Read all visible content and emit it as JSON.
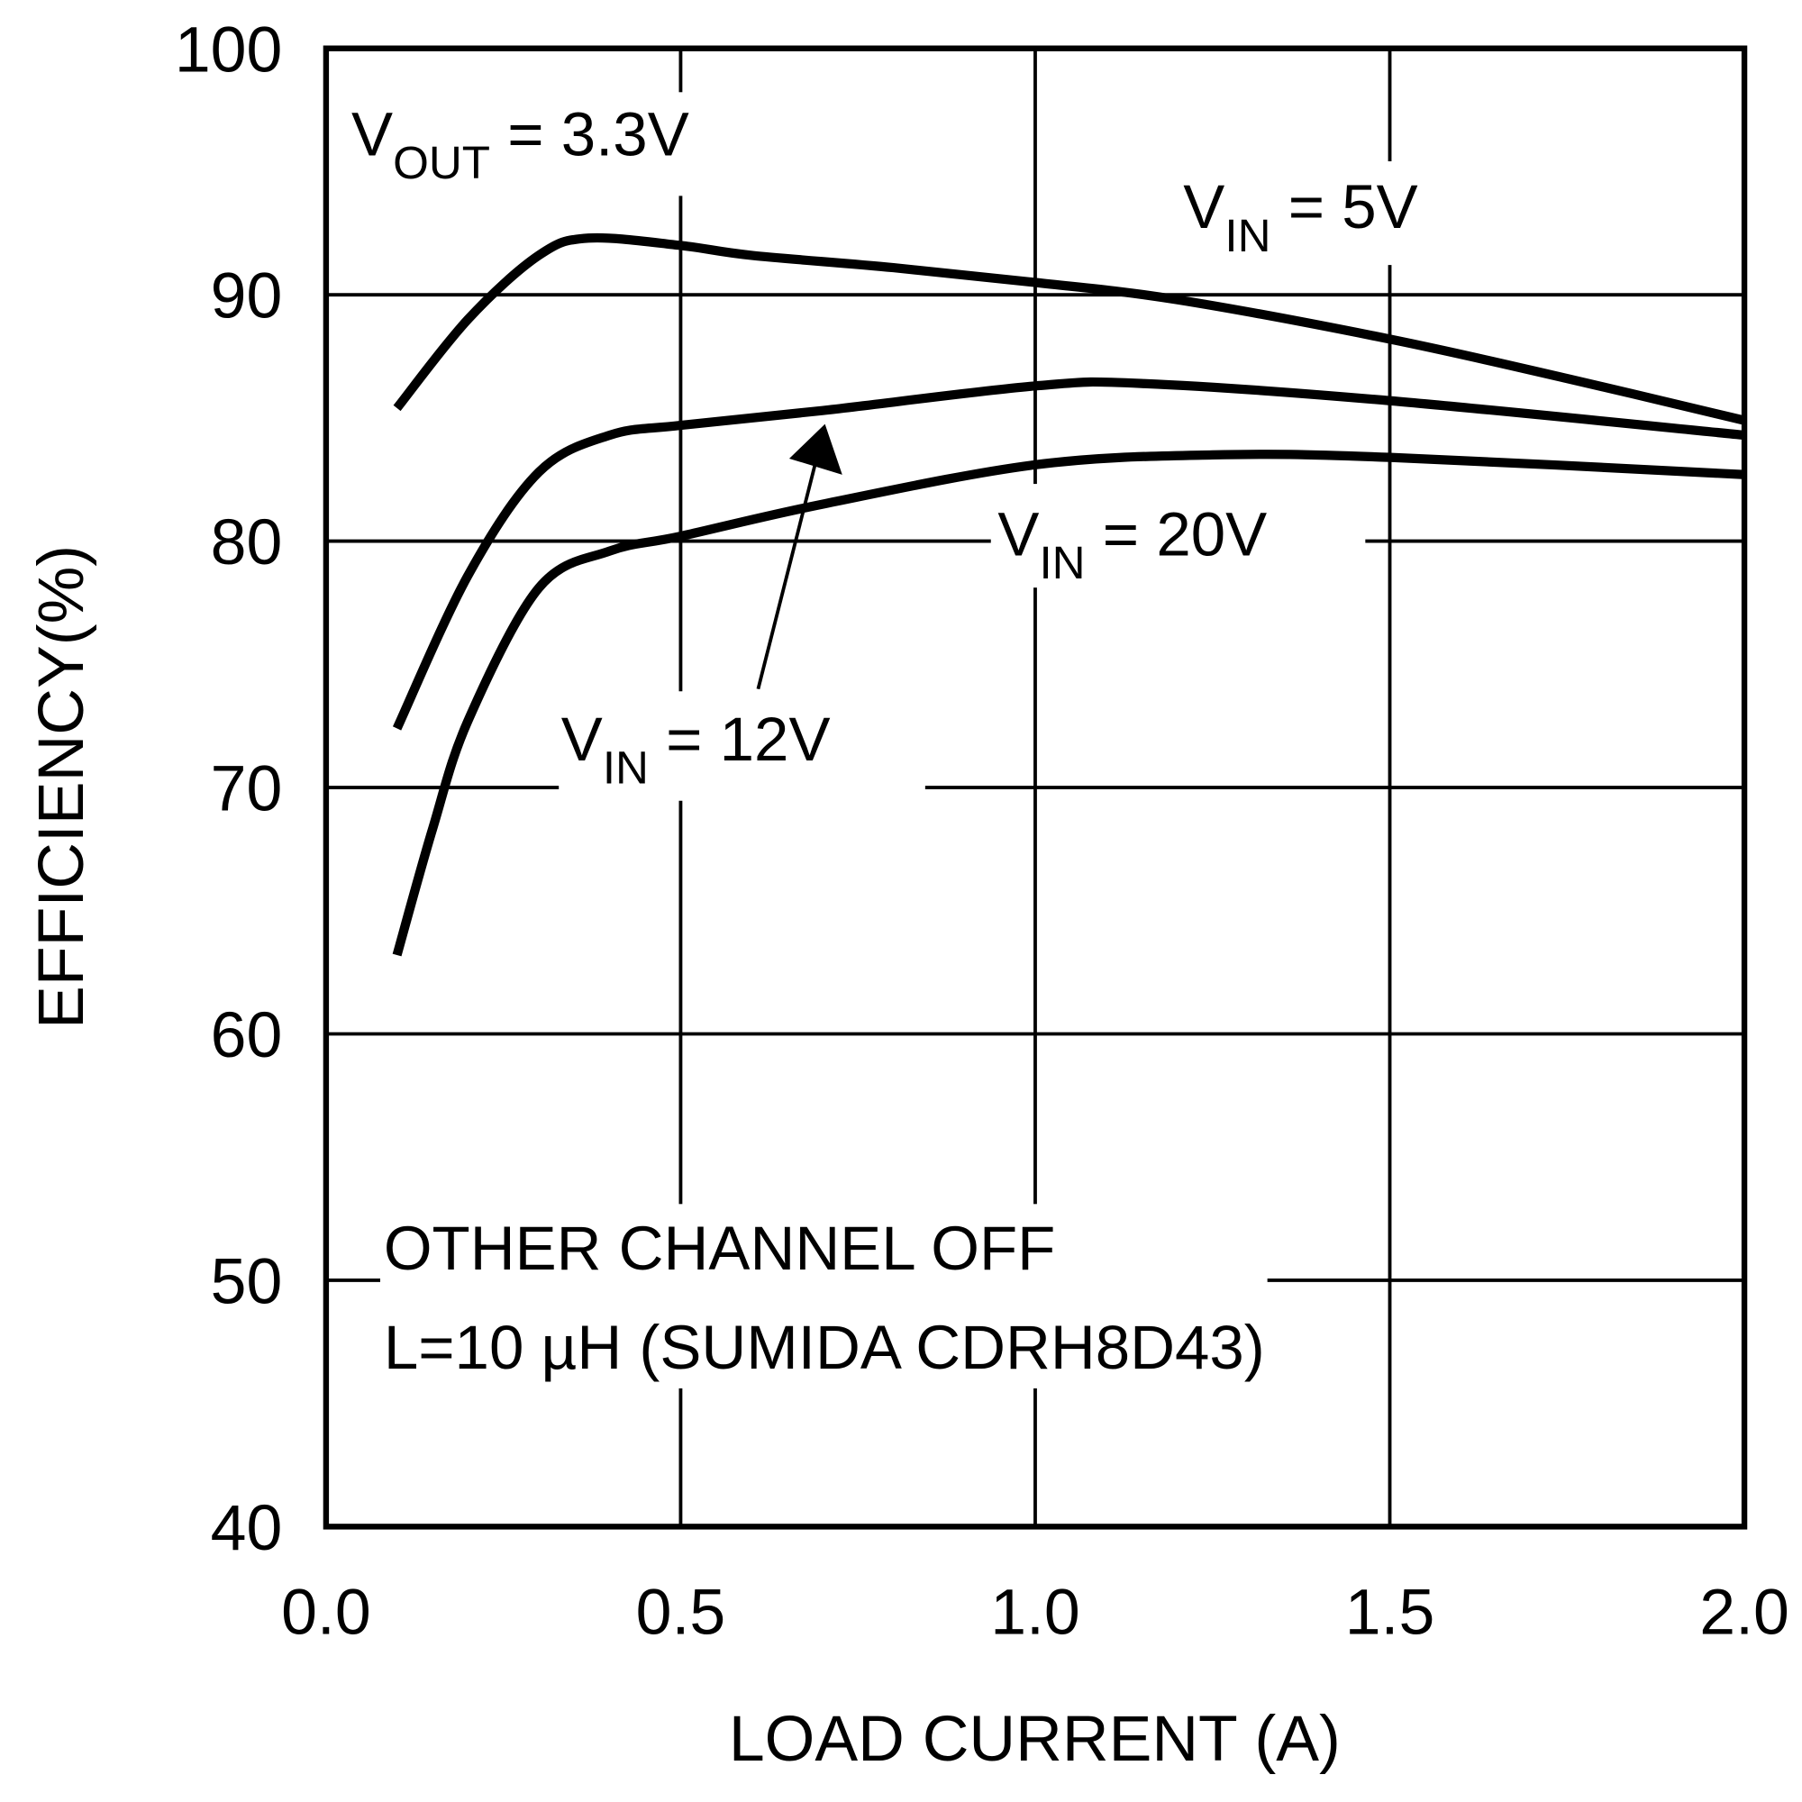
{
  "chart_data": {
    "type": "line",
    "title": "",
    "xlabel": "LOAD CURRENT (A)",
    "ylabel": "EFFICIENCY(%)",
    "xlim": [
      0.0,
      2.0
    ],
    "ylim": [
      40,
      100
    ],
    "grid": true,
    "xticks": [
      "0.0",
      "0.5",
      "1.0",
      "1.5",
      "2.0"
    ],
    "yticks": [
      "40",
      "50",
      "60",
      "70",
      "80",
      "90",
      "100"
    ],
    "series": [
      {
        "name": "VIN = 5V",
        "x": [
          0.1,
          0.2,
          0.3,
          0.37,
          0.5,
          0.6,
          0.8,
          1.0,
          1.2,
          1.5,
          1.75,
          2.0
        ],
        "y": [
          85.4,
          89.0,
          91.6,
          92.3,
          92.0,
          91.6,
          91.1,
          90.5,
          89.8,
          88.2,
          86.6,
          84.9
        ]
      },
      {
        "name": "VIN = 12V",
        "x": [
          0.1,
          0.2,
          0.3,
          0.4,
          0.5,
          0.7,
          1.0,
          1.15,
          1.5,
          2.0
        ],
        "y": [
          72.4,
          78.6,
          82.8,
          84.3,
          84.7,
          85.3,
          86.3,
          86.4,
          85.7,
          84.3
        ]
      },
      {
        "name": "VIN = 20V",
        "x": [
          0.1,
          0.15,
          0.2,
          0.3,
          0.4,
          0.5,
          0.7,
          1.0,
          1.25,
          1.5,
          2.0
        ],
        "y": [
          63.2,
          68.3,
          72.7,
          78.1,
          79.6,
          80.2,
          81.5,
          83.1,
          83.5,
          83.4,
          82.7
        ]
      }
    ],
    "annotations": {
      "vout": {
        "main": "V",
        "sub": "OUT",
        "rest": " = 3.3V"
      },
      "vin5": {
        "main": "V",
        "sub": "IN",
        "rest": " = 5V"
      },
      "vin12": {
        "main": "V",
        "sub": "IN",
        "rest": " = 12V"
      },
      "vin20": {
        "main": "V",
        "sub": "IN",
        "rest": " = 20V"
      },
      "note_line1": "OTHER CHANNEL OFF",
      "note_line2": "L=10 µH (SUMIDA CDRH8D43)"
    }
  }
}
